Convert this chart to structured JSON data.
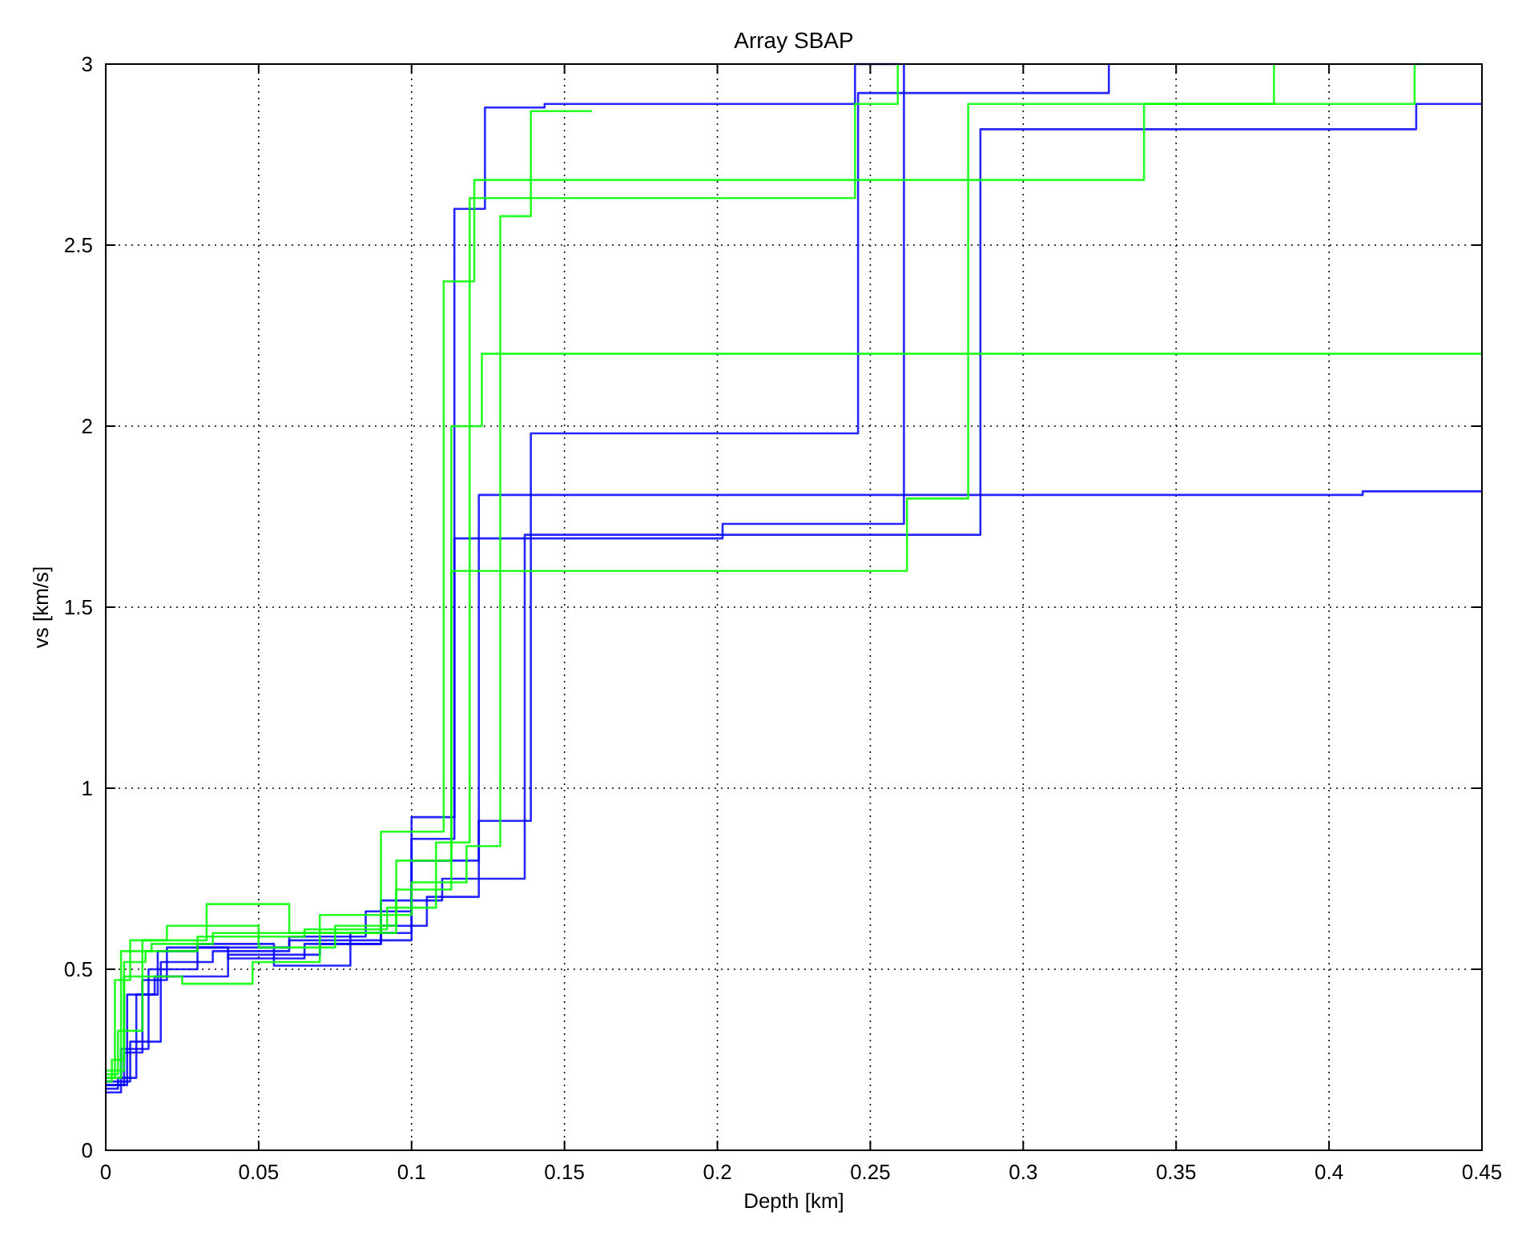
{
  "chart_data": {
    "type": "step",
    "title": "Array SBAP",
    "xlabel": "Depth [km]",
    "ylabel": "vs [km/s]",
    "xlim": [
      0,
      0.45
    ],
    "ylim": [
      0,
      3
    ],
    "xticks": [
      0,
      0.05,
      0.1,
      0.15,
      0.2,
      0.25,
      0.3,
      0.35,
      0.4,
      0.45
    ],
    "yticks": [
      0,
      0.5,
      1,
      1.5,
      2,
      2.5,
      3
    ],
    "grid": true,
    "line_style": "solid",
    "marker": "none",
    "series": [
      {
        "color": "#0000ff",
        "x": [
          0,
          0.004,
          0.01,
          0.017,
          0.03,
          0.06,
          0.08,
          0.1,
          0.114,
          0.124,
          0.1435,
          0.245,
          0.26
        ],
        "values": [
          0.17,
          0.2,
          0.43,
          0.55,
          0.56,
          0.58,
          0.6,
          0.92,
          2.6,
          2.88,
          2.89,
          3.0,
          3.0
        ]
      },
      {
        "color": "#0000ff",
        "x": [
          0,
          0.006,
          0.012,
          0.02,
          0.04,
          0.065,
          0.09,
          0.105,
          0.122,
          0.139,
          0.246,
          0.328
        ],
        "values": [
          0.18,
          0.27,
          0.47,
          0.56,
          0.53,
          0.57,
          0.62,
          0.7,
          0.91,
          1.98,
          2.92,
          3.0
        ]
      },
      {
        "color": "#0000ff",
        "x": [
          0,
          0.005,
          0.014,
          0.03,
          0.055,
          0.08,
          0.1,
          0.122,
          0.411,
          0.45
        ],
        "values": [
          0.16,
          0.28,
          0.5,
          0.57,
          0.51,
          0.58,
          0.8,
          1.81,
          1.82,
          1.82
        ]
      },
      {
        "color": "#0000ff",
        "x": [
          0,
          0.008,
          0.018,
          0.035,
          0.06,
          0.085,
          0.1,
          0.114,
          0.2017,
          0.261
        ],
        "values": [
          0.19,
          0.3,
          0.52,
          0.55,
          0.59,
          0.66,
          0.86,
          1.69,
          1.73,
          3.0
        ]
      },
      {
        "color": "#0000ff",
        "x": [
          0,
          0.007,
          0.016,
          0.04,
          0.07,
          0.09,
          0.11,
          0.137,
          0.286,
          0.4285,
          0.45
        ],
        "values": [
          0.18,
          0.43,
          0.48,
          0.54,
          0.57,
          0.69,
          0.75,
          1.7,
          2.82,
          2.89,
          2.89
        ]
      },
      {
        "color": "#00ff00",
        "x": [
          0,
          0.003,
          0.008,
          0.02,
          0.05,
          0.075,
          0.095,
          0.113,
          0.123,
          0.45
        ],
        "values": [
          0.2,
          0.47,
          0.58,
          0.62,
          0.56,
          0.62,
          0.8,
          2.0,
          2.2,
          2.2
        ]
      },
      {
        "color": "#00ff00",
        "x": [
          0,
          0.004,
          0.012,
          0.033,
          0.06,
          0.09,
          0.1105,
          0.1205,
          0.3395,
          0.428,
          0.43
        ],
        "values": [
          0.21,
          0.33,
          0.58,
          0.68,
          0.6,
          0.88,
          2.4,
          2.68,
          2.89,
          3.0,
          3.0
        ]
      },
      {
        "color": "#00ff00",
        "x": [
          0,
          0.002,
          0.006,
          0.025,
          0.048,
          0.07,
          0.095,
          0.113,
          0.262,
          0.282,
          0.382
        ],
        "values": [
          0.19,
          0.25,
          0.48,
          0.46,
          0.52,
          0.6,
          0.72,
          1.6,
          1.8,
          2.89,
          3.0
        ]
      },
      {
        "color": "#00ff00",
        "x": [
          0,
          0.005,
          0.015,
          0.035,
          0.07,
          0.1,
          0.118,
          0.129,
          0.139,
          0.159
        ],
        "values": [
          0.2,
          0.55,
          0.57,
          0.6,
          0.65,
          0.74,
          0.84,
          2.58,
          2.87,
          2.87
        ]
      },
      {
        "color": "#00ff00",
        "x": [
          0,
          0.006,
          0.013,
          0.03,
          0.065,
          0.092,
          0.108,
          0.119,
          0.245,
          0.259
        ],
        "values": [
          0.22,
          0.52,
          0.55,
          0.59,
          0.61,
          0.67,
          0.85,
          2.63,
          2.89,
          3.0
        ]
      }
    ]
  }
}
